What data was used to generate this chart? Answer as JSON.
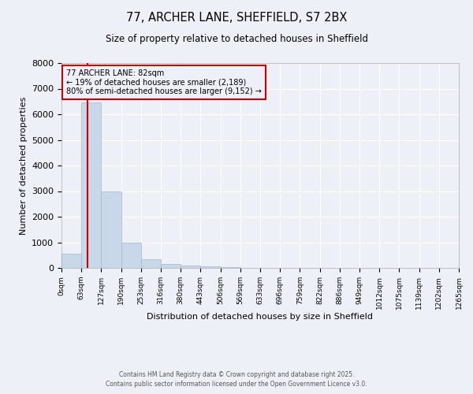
{
  "title": "77, ARCHER LANE, SHEFFIELD, S7 2BX",
  "subtitle": "Size of property relative to detached houses in Sheffield",
  "xlabel": "Distribution of detached houses by size in Sheffield",
  "ylabel": "Number of detached properties",
  "bar_color": "#c8d8e8",
  "bar_edge_color": "#a0b8d0",
  "bin_width": 63,
  "bar_values": [
    550,
    6450,
    2980,
    1000,
    350,
    150,
    100,
    75,
    30,
    10,
    5,
    3,
    2,
    1,
    1,
    1,
    1,
    1,
    0,
    0
  ],
  "x_tick_labels": [
    "0sqm",
    "63sqm",
    "127sqm",
    "190sqm",
    "253sqm",
    "316sqm",
    "380sqm",
    "443sqm",
    "506sqm",
    "569sqm",
    "633sqm",
    "696sqm",
    "759sqm",
    "822sqm",
    "886sqm",
    "949sqm",
    "1012sqm",
    "1075sqm",
    "1139sqm",
    "1202sqm",
    "1265sqm"
  ],
  "ylim": [
    0,
    8000
  ],
  "yticks": [
    0,
    1000,
    2000,
    3000,
    4000,
    5000,
    6000,
    7000,
    8000
  ],
  "property_size": 82,
  "vline_color": "#cc0000",
  "annotation_text": "77 ARCHER LANE: 82sqm\n← 19% of detached houses are smaller (2,189)\n80% of semi-detached houses are larger (9,152) →",
  "annotation_box_color": "#cc0000",
  "footer_line1": "Contains HM Land Registry data © Crown copyright and database right 2025.",
  "footer_line2": "Contains public sector information licensed under the Open Government Licence v3.0.",
  "background_color": "#edf1f7",
  "grid_color": "#ffffff"
}
